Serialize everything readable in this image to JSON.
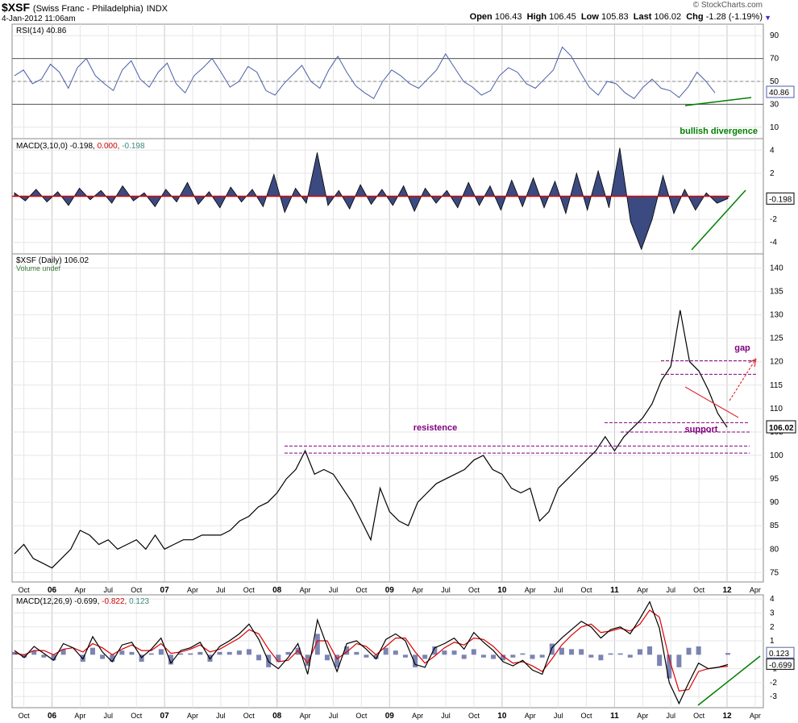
{
  "header": {
    "symbol": "$XSF",
    "name": "(Swiss Franc - Philadelphia)",
    "exchange": "INDX",
    "datetime": "4-Jan-2012 11:06am",
    "watermark": "© StockCharts.com",
    "open_label": "Open",
    "open": "106.43",
    "high_label": "High",
    "high": "106.45",
    "low_label": "Low",
    "low": "105.83",
    "last_label": "Last",
    "last": "106.02",
    "chg_label": "Chg",
    "chg": "-1.28 (-1.19%)",
    "dropdown_icon": "triangle-down-icon"
  },
  "x_axis": {
    "tick_labels": [
      "Oct",
      "06",
      "Apr",
      "Jul",
      "Oct",
      "07",
      "Apr",
      "Jul",
      "Oct",
      "08",
      "Apr",
      "Jul",
      "Oct",
      "09",
      "Apr",
      "Jul",
      "Oct",
      "10",
      "Apr",
      "Jul",
      "Oct",
      "11",
      "Apr",
      "Jul",
      "Oct",
      "12",
      "Apr"
    ],
    "years": [
      "06",
      "07",
      "08",
      "09",
      "10",
      "11",
      "12"
    ]
  },
  "chart_data": [
    {
      "type": "line",
      "panel": "RSI",
      "title": "RSI(14) 40.86",
      "ylim": [
        0,
        100
      ],
      "ytick_labels": [
        "90",
        "70",
        "50",
        "30",
        "10"
      ],
      "reference_lines": [
        70,
        50,
        30
      ],
      "last_value_tag": "40.86",
      "series": [
        {
          "values": [
            55,
            60,
            48,
            52,
            65,
            58,
            44,
            62,
            70,
            55,
            48,
            42,
            60,
            68,
            52,
            45,
            58,
            66,
            48,
            40,
            55,
            62,
            70,
            58,
            45,
            50,
            63,
            58,
            42,
            38,
            48,
            56,
            64,
            50,
            44,
            60,
            72,
            58,
            46,
            40,
            35,
            50,
            60,
            55,
            48,
            44,
            52,
            60,
            74,
            62,
            50,
            45,
            38,
            42,
            55,
            62,
            58,
            48,
            44,
            52,
            60,
            80,
            72,
            58,
            45,
            38,
            50,
            48,
            40,
            35,
            45,
            52,
            44,
            42,
            36,
            45,
            58,
            50,
            40
          ]
        }
      ],
      "annotations": [
        {
          "text": "bullish divergence",
          "color": "#008000"
        }
      ]
    },
    {
      "type": "area",
      "panel": "MACD short",
      "title_parts": [
        "MACD(3,10,0)",
        "-0.198,",
        "0.000,",
        "-0.198"
      ],
      "ylim": [
        -5,
        5
      ],
      "ytick_labels": [
        "4",
        "2",
        "-2",
        "-4"
      ],
      "last_value_tag": "-0.198",
      "series": [
        {
          "values": [
            0.3,
            -0.4,
            0.6,
            -0.5,
            0.4,
            -0.8,
            0.7,
            -0.3,
            0.5,
            -0.6,
            0.9,
            -0.4,
            0.3,
            -0.9,
            0.6,
            -0.5,
            1.2,
            -0.7,
            0.4,
            -1.0,
            0.8,
            -0.5,
            0.6,
            -0.9,
            1.9,
            -1.4,
            0.7,
            -0.6,
            3.8,
            -0.8,
            0.5,
            -1.1,
            1.0,
            -0.7,
            0.6,
            -0.8,
            0.9,
            -1.3,
            0.7,
            -0.6,
            0.5,
            -1.0,
            1.2,
            -0.8,
            0.9,
            -1.2,
            1.4,
            -0.9,
            1.6,
            -1.0,
            1.3,
            -1.5,
            2.0,
            -1.2,
            2.2,
            -1.0,
            4.2,
            -2.2,
            -4.6,
            -2.0,
            1.8,
            -1.5,
            0.6,
            -1.2,
            0.3,
            -0.6,
            -0.198
          ]
        }
      ]
    },
    {
      "type": "line",
      "panel": "Price",
      "title": "$XSF (Daily) 106.02",
      "subtitle": "Volume undef",
      "ylim": [
        73,
        143
      ],
      "ytick_labels": [
        "140",
        "135",
        "130",
        "125",
        "120",
        "115",
        "110",
        "105",
        "100",
        "95",
        "90",
        "85",
        "80",
        "75"
      ],
      "last_value_tag": "106.02",
      "x": [
        "2005-09",
        "2005-10",
        "2005-11",
        "2005-12",
        "2006-01",
        "2006-02",
        "2006-03",
        "2006-04",
        "2006-05",
        "2006-06",
        "2006-07",
        "2006-08",
        "2006-09",
        "2006-10",
        "2006-11",
        "2006-12",
        "2007-01",
        "2007-02",
        "2007-03",
        "2007-04",
        "2007-05",
        "2007-06",
        "2007-07",
        "2007-08",
        "2007-09",
        "2007-10",
        "2007-11",
        "2007-12",
        "2008-01",
        "2008-02",
        "2008-03",
        "2008-04",
        "2008-05",
        "2008-06",
        "2008-07",
        "2008-08",
        "2008-09",
        "2008-10",
        "2008-11",
        "2008-12",
        "2009-01",
        "2009-02",
        "2009-03",
        "2009-04",
        "2009-05",
        "2009-06",
        "2009-07",
        "2009-08",
        "2009-09",
        "2009-10",
        "2009-11",
        "2009-12",
        "2010-01",
        "2010-02",
        "2010-03",
        "2010-04",
        "2010-05",
        "2010-06",
        "2010-07",
        "2010-08",
        "2010-09",
        "2010-10",
        "2010-11",
        "2010-12",
        "2011-01",
        "2011-02",
        "2011-03",
        "2011-04",
        "2011-05",
        "2011-06",
        "2011-07",
        "2011-08",
        "2011-09",
        "2011-10",
        "2011-11",
        "2011-12",
        "2012-01"
      ],
      "series": [
        {
          "name": "$XSF (Daily)",
          "values": [
            79,
            81,
            78,
            77,
            76,
            78,
            80,
            84,
            83,
            81,
            82,
            80,
            81,
            82,
            80,
            83,
            80,
            81,
            82,
            82,
            83,
            83,
            83,
            84,
            86,
            87,
            89,
            90,
            92,
            95,
            97,
            101,
            96,
            97,
            96,
            93,
            90,
            86,
            82,
            93,
            88,
            86,
            85,
            90,
            92,
            94,
            95,
            96,
            97,
            99,
            100,
            97,
            96,
            93,
            92,
            93,
            86,
            88,
            93,
            95,
            97,
            99,
            101,
            104,
            101,
            104,
            106,
            108,
            111,
            116,
            119,
            131,
            120,
            118,
            114,
            109,
            106
          ]
        }
      ],
      "annotations": [
        {
          "text": "resistence",
          "color": "#800080"
        },
        {
          "text": "support",
          "color": "#800080"
        },
        {
          "text": "gap",
          "color": "#800080"
        }
      ],
      "support_resistance_levels": [
        102,
        100.5,
        120.2,
        117.3,
        107,
        105
      ]
    },
    {
      "type": "line",
      "panel": "MACD long",
      "title_parts": [
        "MACD(12,26,9)",
        "-0.699,",
        "-0.822,",
        "0.123"
      ],
      "ylim": [
        -3.8,
        4.3
      ],
      "ytick_labels": [
        "4",
        "3",
        "2",
        "1",
        "-1",
        "-2",
        "-3"
      ],
      "last_value_tags": [
        "0.123",
        "-0.699"
      ],
      "series": [
        {
          "values": [
            0.3,
            -0.2,
            0.6,
            0.1,
            -0.4,
            0.8,
            0.5,
            -0.3,
            1.3,
            0.2,
            -0.5,
            0.7,
            0.9,
            -0.2,
            0.4,
            1.2,
            -0.6,
            0.3,
            0.5,
            0.9,
            -0.3,
            0.6,
            1.0,
            1.5,
            2.2,
            1.1,
            -0.5,
            -1.0,
            -0.2,
            0.8,
            -1.4,
            2.5,
            0.6,
            -1.2,
            0.8,
            1.0,
            0.4,
            -0.3,
            1.1,
            1.5,
            1.0,
            -0.7,
            -0.9,
            0.5,
            0.8,
            1.2,
            0.4,
            1.6,
            0.9,
            0.3,
            -0.5,
            -0.8,
            -0.4,
            -1.1,
            -1.4,
            0.5,
            1.2,
            1.8,
            2.4,
            2.0,
            1.2,
            1.8,
            2.0,
            1.5,
            2.6,
            3.8,
            1.9,
            -2.0,
            -3.5,
            -2.0,
            -0.6,
            -1.0,
            -0.9,
            -0.7
          ]
        },
        {
          "values": [
            0.1,
            0.0,
            0.3,
            0.3,
            0.0,
            0.4,
            0.5,
            0.2,
            0.8,
            0.5,
            0.0,
            0.4,
            0.7,
            0.3,
            0.3,
            0.8,
            0.1,
            0.2,
            0.4,
            0.7,
            0.2,
            0.4,
            0.8,
            1.2,
            1.8,
            1.5,
            0.4,
            -0.5,
            -0.4,
            0.3,
            -0.6,
            1.0,
            1.0,
            -0.3,
            0.2,
            0.8,
            0.6,
            0.0,
            0.6,
            1.2,
            1.2,
            0.2,
            -0.6,
            -0.1,
            0.5,
            0.9,
            0.7,
            1.2,
            1.1,
            0.6,
            -0.1,
            -0.6,
            -0.5,
            -0.8,
            -1.2,
            -0.3,
            0.7,
            1.4,
            2.0,
            2.2,
            1.6,
            1.7,
            1.9,
            1.7,
            2.2,
            3.2,
            2.7,
            -0.3,
            -2.6,
            -2.5,
            -1.2,
            -1.0,
            -0.9,
            -0.822
          ]
        }
      ]
    }
  ]
}
